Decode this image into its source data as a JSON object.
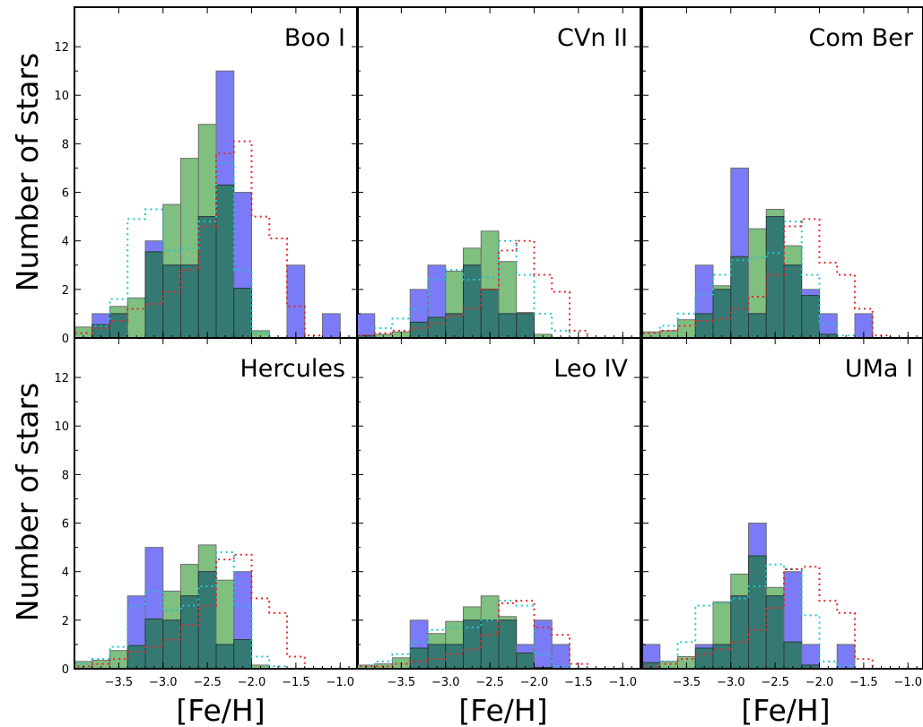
{
  "colors": {
    "blue_fill": "#7b7bf7",
    "green_fill": "#7fbf7f",
    "overlap_fill": "#347a73",
    "bar_edge": "#6f6f6f",
    "cyan_line": "#22c4cf",
    "red_line": "#e8262b"
  },
  "chart_data": {
    "type": "bar",
    "layout": "2x3 grid of histograms, shared axes",
    "ylabel": "Number of stars",
    "xlabel": "[Fe/H]",
    "xlim": [
      -4.0,
      -0.8
    ],
    "ylim": [
      0,
      13
    ],
    "xticks": [
      -3.5,
      -3.0,
      -2.5,
      -2.0,
      -1.5,
      -1.0
    ],
    "xtick_labels": [
      "−3.5",
      "−3.0",
      "−2.5",
      "−2.0",
      "−1.5",
      "−1.0"
    ],
    "yticks": [
      0,
      2,
      4,
      6,
      8,
      10,
      12
    ],
    "ytick_labels": [
      "0",
      "2",
      "4",
      "6",
      "8",
      "10",
      "12"
    ],
    "bin_edges": [
      -4.0,
      -3.8,
      -3.6,
      -3.4,
      -3.2,
      -3.0,
      -2.8,
      -2.6,
      -2.4,
      -2.2,
      -2.0,
      -1.8,
      -1.6,
      -1.4,
      -1.2,
      -1.0,
      -0.8
    ],
    "panels": [
      {
        "name": "Boo I",
        "blue": [
          0,
          1,
          1,
          0,
          4,
          3,
          3,
          5,
          11,
          6,
          0,
          0,
          3,
          0,
          1,
          0
        ],
        "green": [
          0.45,
          0.55,
          1.3,
          1.65,
          3.55,
          5.5,
          7.4,
          8.8,
          6.3,
          2.05,
          0.3,
          0,
          0,
          0,
          0,
          0
        ],
        "cyan": [
          0.2,
          0.5,
          1.6,
          4.9,
          5.3,
          3.6,
          3.7,
          4.8,
          7.2,
          2.8,
          0.2,
          0,
          0,
          0,
          0,
          0
        ],
        "red": [
          0.2,
          0.4,
          0.7,
          1.2,
          1.4,
          1.9,
          2.8,
          4.6,
          7.6,
          8.1,
          5.0,
          4.1,
          1.3,
          0.1,
          0,
          0
        ]
      },
      {
        "name": "CVn II",
        "blue": [
          1,
          0,
          0,
          2,
          3,
          1,
          3,
          2,
          1,
          1,
          0,
          0,
          0,
          0,
          0,
          0
        ],
        "green": [
          0.1,
          0.15,
          0.25,
          0.65,
          0.85,
          2.75,
          3.7,
          4.4,
          3.15,
          1.05,
          0.15,
          0,
          0,
          0,
          0,
          0
        ],
        "cyan": [
          0.1,
          0.4,
          0.8,
          1.2,
          2.4,
          2.8,
          2.4,
          2.5,
          4.0,
          2.6,
          1.0,
          0.3,
          0,
          0,
          0,
          0
        ],
        "red": [
          0.1,
          0.2,
          0.3,
          0.4,
          0.6,
          0.9,
          1.2,
          2.0,
          3.6,
          4.0,
          2.6,
          1.9,
          0.3,
          0,
          0,
          0
        ]
      },
      {
        "name": "Com Ber",
        "blue": [
          0,
          0,
          0,
          3,
          2,
          7,
          1,
          5,
          3,
          2,
          1,
          0,
          1,
          0,
          0,
          0
        ],
        "green": [
          0.25,
          0.3,
          0.75,
          1.0,
          2.15,
          3.35,
          4.5,
          5.3,
          3.8,
          1.75,
          0.15,
          0,
          0,
          0,
          0,
          0
        ],
        "cyan": [
          0.2,
          0.5,
          1.0,
          1.8,
          2.6,
          3.2,
          3.3,
          3.5,
          4.8,
          2.6,
          0.6,
          0.1,
          0,
          0,
          0,
          0
        ],
        "red": [
          0.2,
          0.3,
          0.5,
          0.7,
          0.8,
          1.2,
          1.7,
          2.6,
          4.6,
          4.9,
          3.1,
          2.6,
          1.2,
          0.1,
          0,
          0
        ]
      },
      {
        "name": "Hercules",
        "blue": [
          0,
          0,
          0,
          3,
          5,
          2,
          3,
          4,
          1,
          4,
          0,
          0,
          0,
          0,
          0,
          0
        ],
        "green": [
          0.3,
          0.35,
          0.75,
          0.95,
          2.05,
          3.2,
          4.3,
          5.1,
          3.65,
          1.2,
          0.15,
          0,
          0,
          0,
          0,
          0
        ],
        "cyan": [
          0.2,
          0.4,
          0.9,
          2.6,
          3.2,
          2.4,
          2.6,
          3.4,
          4.8,
          2.6,
          0.5,
          0.1,
          0,
          0,
          0,
          0
        ],
        "red": [
          0.1,
          0.2,
          0.4,
          0.7,
          0.9,
          1.2,
          1.8,
          2.6,
          4.5,
          4.7,
          2.9,
          2.3,
          0.5,
          0,
          0,
          0
        ]
      },
      {
        "name": "Leo IV",
        "blue": [
          0,
          0,
          0,
          2,
          1,
          1,
          2,
          2,
          2,
          1,
          2,
          1,
          0,
          0,
          0,
          0
        ],
        "green": [
          0.15,
          0.2,
          0.45,
          0.85,
          1.45,
          1.95,
          2.55,
          3.0,
          2.15,
          0.65,
          0.05,
          0,
          0,
          0,
          0,
          0
        ],
        "cyan": [
          0.1,
          0.3,
          0.6,
          1.1,
          1.6,
          1.7,
          1.7,
          2.0,
          2.8,
          2.6,
          0.6,
          0.1,
          0,
          0,
          0,
          0
        ],
        "red": [
          0.1,
          0.1,
          0.2,
          0.3,
          0.4,
          0.6,
          0.8,
          1.4,
          2.7,
          2.8,
          1.7,
          1.4,
          0.2,
          0,
          0,
          0
        ]
      },
      {
        "name": "UMa I",
        "blue": [
          1,
          0,
          0,
          1,
          1,
          3,
          6,
          3,
          4,
          1,
          0,
          1,
          0,
          0,
          0,
          0
        ],
        "green": [
          0.25,
          0.3,
          0.5,
          0.85,
          2.75,
          3.9,
          4.65,
          3.35,
          1.1,
          0.15,
          0,
          0,
          0,
          0,
          0,
          0
        ],
        "cyan": [
          0.1,
          0.3,
          1.1,
          2.6,
          2.7,
          2.9,
          3.4,
          4.3,
          4.1,
          2.2,
          0.3,
          0.1,
          0,
          0,
          0,
          0
        ],
        "red": [
          0.1,
          0.2,
          0.4,
          0.6,
          0.8,
          1.1,
          1.6,
          2.5,
          4.1,
          4.2,
          2.8,
          2.3,
          0.4,
          0,
          0,
          0
        ]
      }
    ]
  }
}
